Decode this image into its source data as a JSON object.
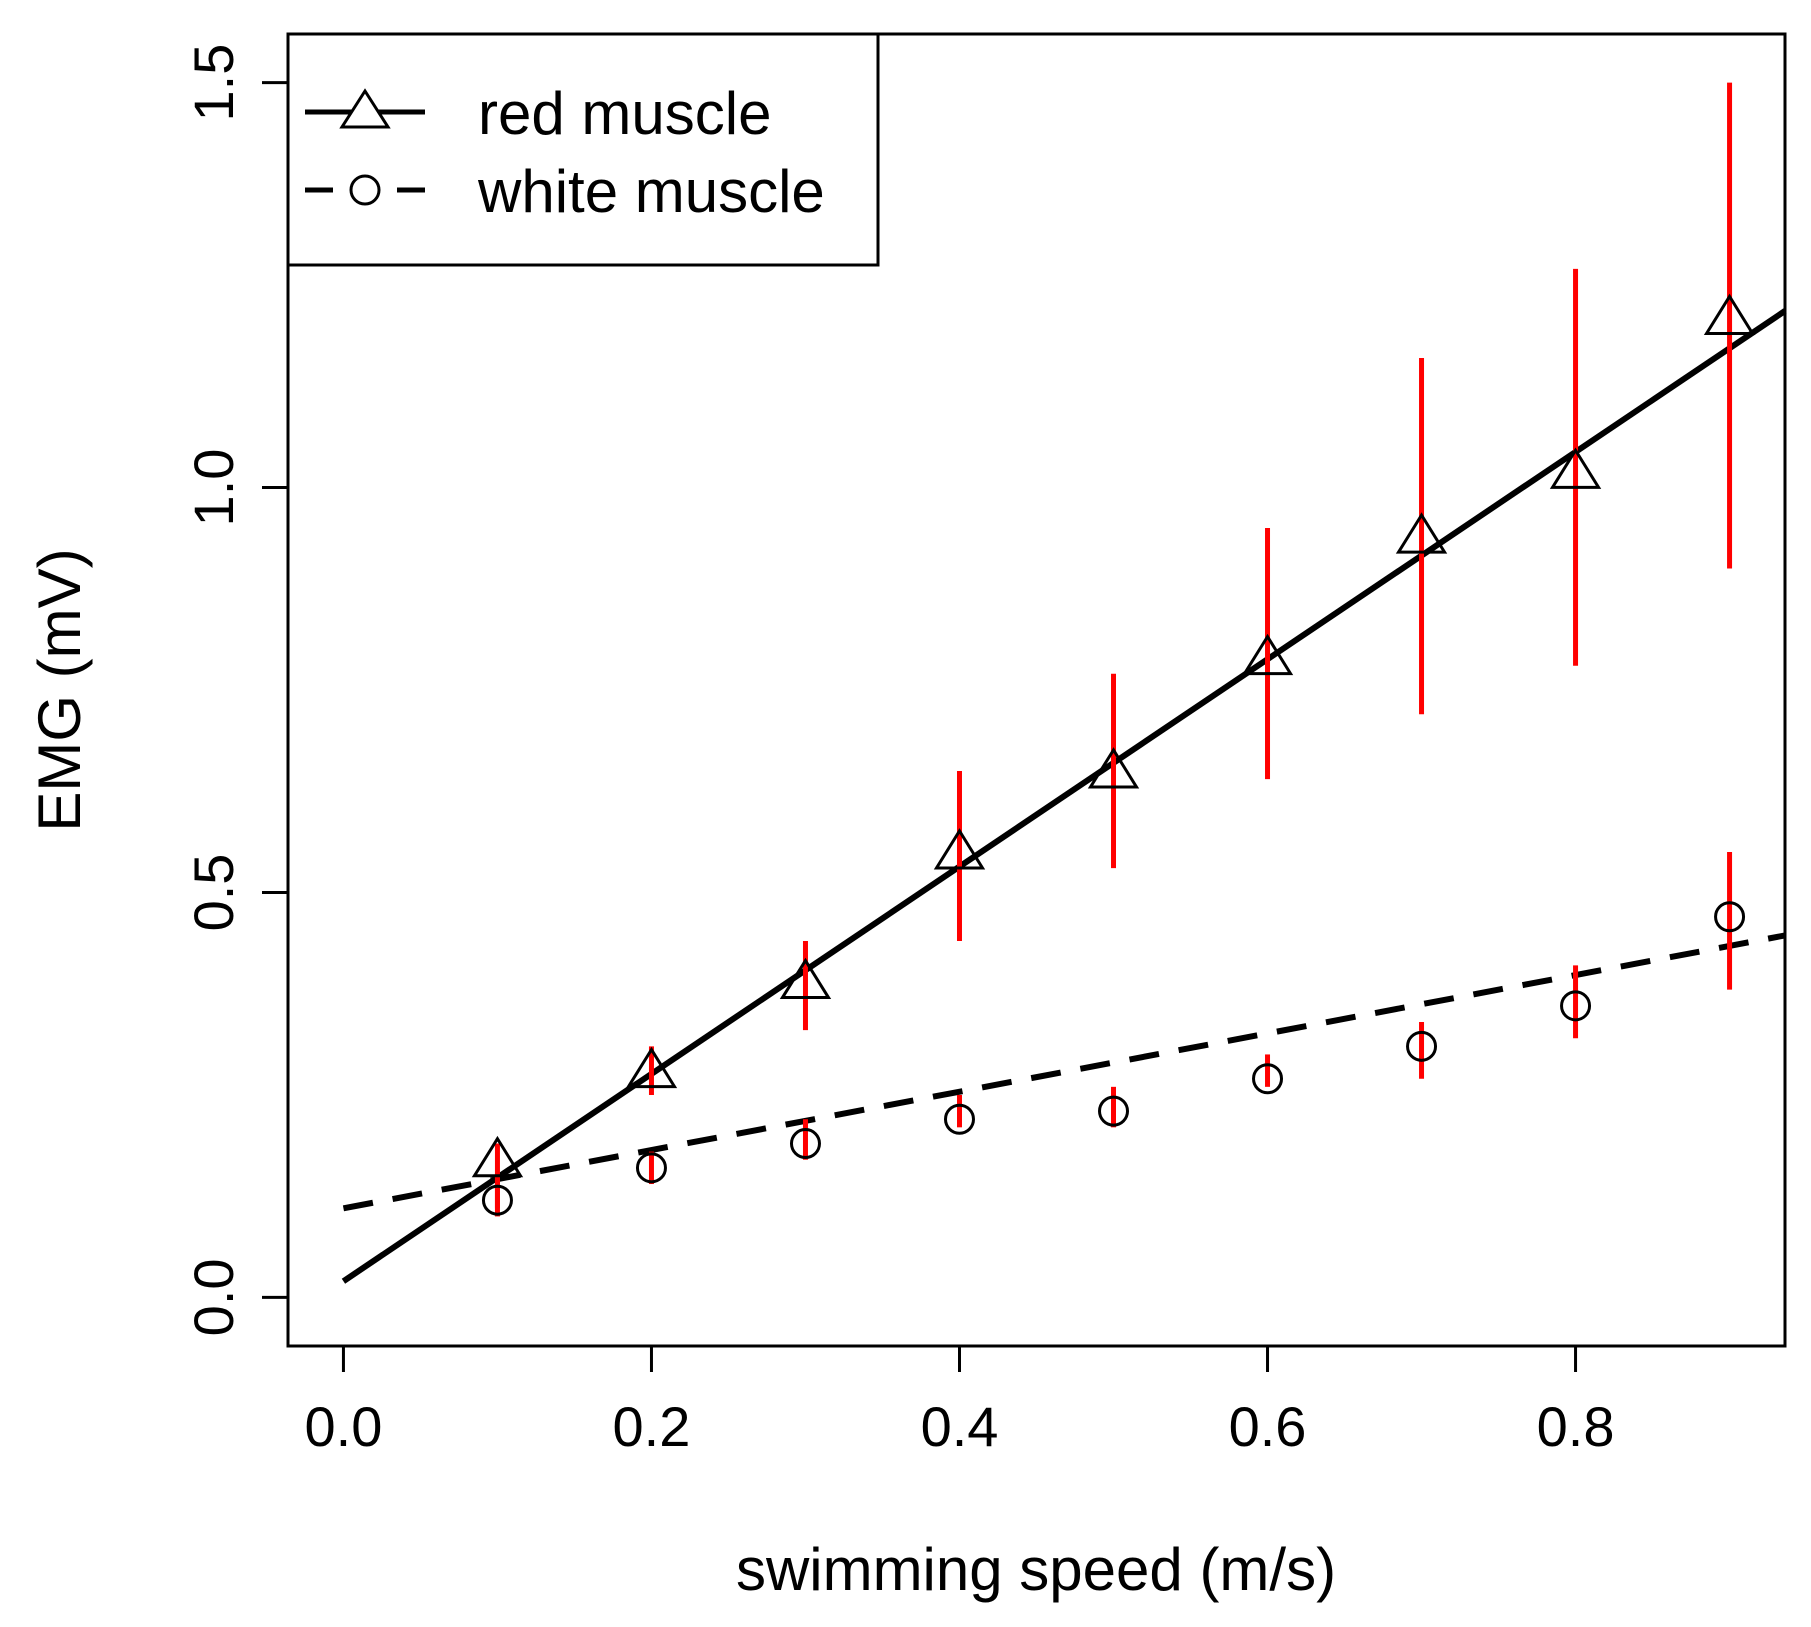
{
  "chart_data": {
    "type": "scatter",
    "title": "",
    "xlabel": "swimming speed (m/s)",
    "ylabel": "EMG (mV)",
    "xlim": [
      -0.036,
      0.936
    ],
    "ylim": [
      -0.06,
      1.56
    ],
    "xticks": [
      0.0,
      0.2,
      0.4,
      0.6,
      0.8
    ],
    "xtick_labels": [
      "0.0",
      "0.2",
      "0.4",
      "0.6",
      "0.8"
    ],
    "yticks": [
      0.0,
      0.5,
      1.0,
      1.5
    ],
    "ytick_labels": [
      "0.0",
      "0.5",
      "1.0",
      "1.5"
    ],
    "grid": false,
    "legend_position": "top-left",
    "x": [
      0.1,
      0.2,
      0.3,
      0.4,
      0.5,
      0.6,
      0.7,
      0.8,
      0.9
    ],
    "series": [
      {
        "name": "red muscle",
        "marker": "triangle",
        "line_style": "solid",
        "values": [
          0.17,
          0.28,
          0.39,
          0.55,
          0.65,
          0.79,
          0.94,
          1.02,
          1.21
        ],
        "error_low": [
          0.11,
          0.25,
          0.33,
          0.44,
          0.53,
          0.64,
          0.72,
          0.78,
          0.9
        ],
        "error_high": [
          0.19,
          0.31,
          0.44,
          0.65,
          0.77,
          0.95,
          1.16,
          1.27,
          1.5
        ],
        "error_color": "#ff0000",
        "fit": {
          "intercept": 0.02,
          "slope": 1.28
        }
      },
      {
        "name": "white muscle",
        "marker": "circle",
        "line_style": "dashed",
        "values": [
          0.12,
          0.16,
          0.19,
          0.22,
          0.23,
          0.27,
          0.31,
          0.36,
          0.47
        ],
        "error_low": [
          0.1,
          0.14,
          0.17,
          0.21,
          0.21,
          0.26,
          0.27,
          0.32,
          0.38
        ],
        "error_high": [
          0.15,
          0.18,
          0.22,
          0.25,
          0.26,
          0.3,
          0.34,
          0.41,
          0.55
        ],
        "error_color": "#ff0000",
        "fit": {
          "intercept": 0.11,
          "slope": 0.36
        }
      }
    ]
  }
}
